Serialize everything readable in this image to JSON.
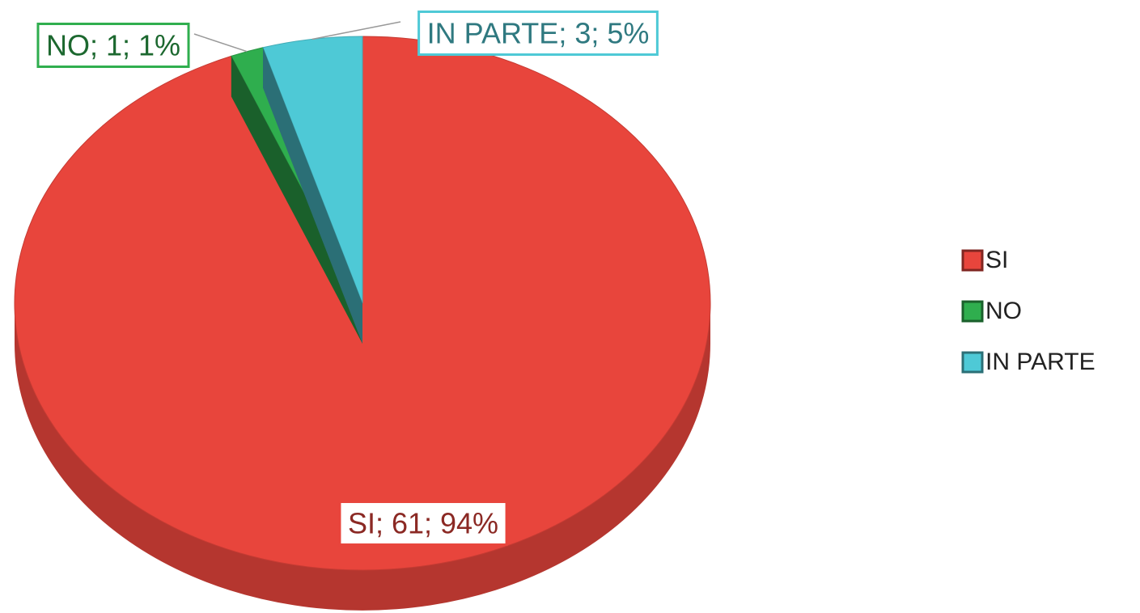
{
  "chart_data": {
    "type": "pie",
    "categories": [
      "SI",
      "NO",
      "IN PARTE"
    ],
    "values": [
      61,
      1,
      3
    ],
    "value_labels": [
      "SI; 61; 94%",
      "NO; 1; 1%",
      "IN PARTE; 3; 5%"
    ],
    "colors": [
      "#e8453c",
      "#2fae4e",
      "#4ec9d6"
    ],
    "legend": "right"
  }
}
